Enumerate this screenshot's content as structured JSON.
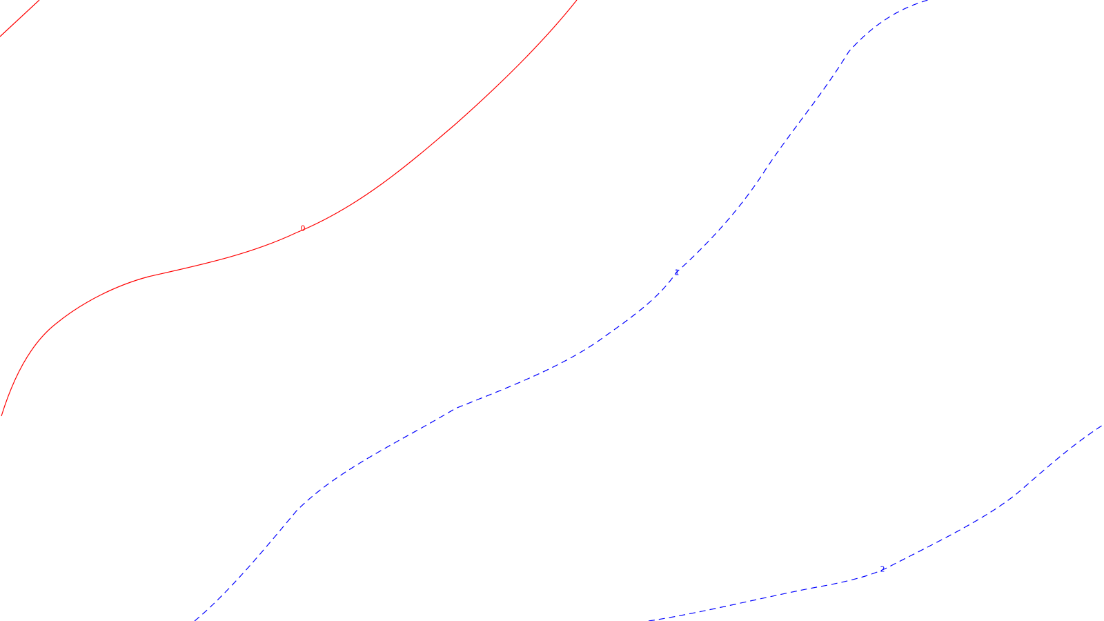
{
  "map": {
    "background": "#ffffff",
    "contours": [
      {
        "id": "contour-0",
        "label": "0",
        "color": "#ff0000",
        "style": "solid"
      },
      {
        "id": "contour-1",
        "label": "1",
        "color": "#0000ff",
        "style": "dashed"
      },
      {
        "id": "contour-2",
        "label": "2",
        "color": "#0000ff",
        "style": "dashed"
      }
    ]
  }
}
